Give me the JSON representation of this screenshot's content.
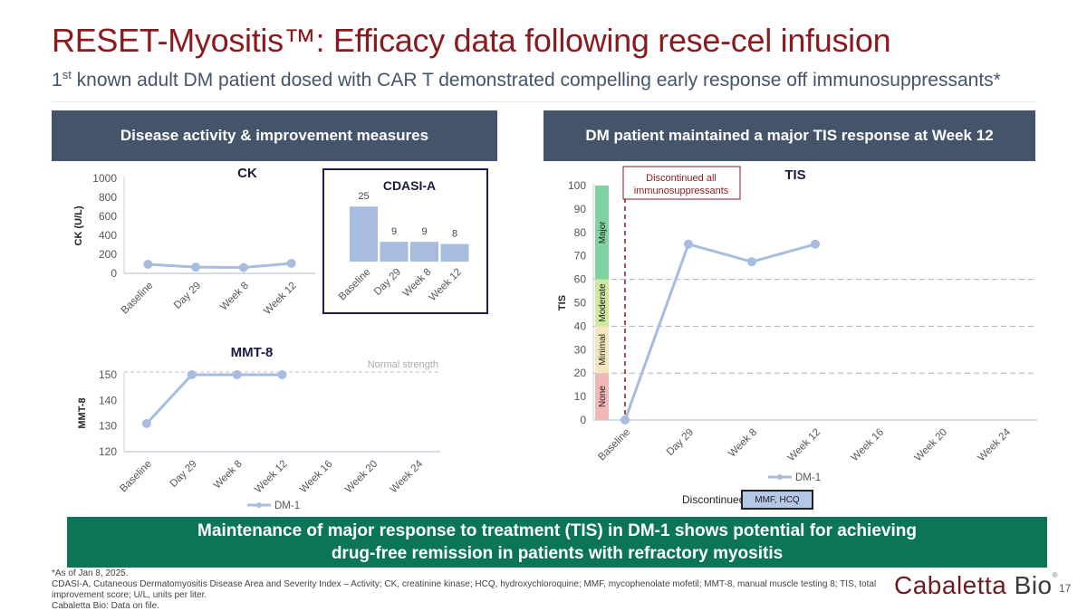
{
  "header": {
    "title": "RESET-Myositis™: Efficacy data following rese-cel infusion",
    "subtitle_sup": "st",
    "subtitle_lead": "1",
    "subtitle_rest": " known adult DM patient dosed with CAR T demonstrated compelling early response off immunosuppressants*"
  },
  "panels": {
    "left_header": "Disease activity & improvement measures",
    "right_header": "DM patient maintained a major TIS response at Week 12"
  },
  "colors": {
    "series": "#a7bcdf",
    "title_red": "#8b1a1f",
    "header_bg": "#44546a",
    "banner_bg": "#0c7558",
    "band_major": "#7fd3a0",
    "band_moderate": "#cfe8a0",
    "band_minimal": "#f3e5c0",
    "band_none": "#efb7b5",
    "discontinued_line": "#8b1a1f"
  },
  "chart_data": [
    {
      "id": "ck",
      "type": "line",
      "title": "CK",
      "ylabel": "CK (U/L)",
      "xlabel": "",
      "categories": [
        "Baseline",
        "Day 29",
        "Week 8",
        "Week 12"
      ],
      "series": [
        {
          "name": "DM-1",
          "values": [
            95,
            65,
            62,
            105
          ]
        }
      ],
      "ylim": [
        0,
        1000
      ],
      "yticks": [
        0,
        200,
        400,
        600,
        800,
        1000
      ],
      "grid": false
    },
    {
      "id": "cdasi",
      "type": "bar",
      "title": "CDASI-A",
      "categories": [
        "Baseline",
        "Day 29",
        "Week 8",
        "Week 12"
      ],
      "values": [
        25,
        9,
        9,
        8
      ],
      "data_labels": [
        "25",
        "9",
        "9",
        "8"
      ],
      "ylim": [
        0,
        30
      ],
      "grid": false
    },
    {
      "id": "mmt8",
      "type": "line",
      "title": "MMT-8",
      "ylabel": "MMT-8",
      "xlabel": "",
      "categories": [
        "Baseline",
        "Day 29",
        "Week 8",
        "Week 12",
        "Week 16",
        "Week 20",
        "Week 24"
      ],
      "series": [
        {
          "name": "DM-1",
          "values": [
            131,
            150,
            150,
            150,
            null,
            null,
            null
          ]
        }
      ],
      "ylim": [
        120,
        150
      ],
      "yticks": [
        120,
        130,
        140,
        150
      ],
      "reference_line": {
        "value": 150,
        "label": "Normal strength"
      },
      "legend": "bottom",
      "grid": false
    },
    {
      "id": "tis",
      "type": "line",
      "title": "TIS",
      "ylabel": "TIS",
      "xlabel": "",
      "categories": [
        "Baseline",
        "Day 29",
        "Week 8",
        "Week 12",
        "Week 16",
        "Week 20",
        "Week 24"
      ],
      "series": [
        {
          "name": "DM-1",
          "values": [
            0,
            75,
            67.5,
            75,
            null,
            null,
            null
          ]
        }
      ],
      "ylim": [
        0,
        100
      ],
      "yticks": [
        0,
        10,
        20,
        30,
        40,
        50,
        60,
        70,
        80,
        90,
        100
      ],
      "thresholds": [
        20,
        40,
        60
      ],
      "bands": [
        {
          "label": "None",
          "from": 0,
          "to": 20
        },
        {
          "label": "Minimal",
          "from": 20,
          "to": 40
        },
        {
          "label": "Moderate",
          "from": 40,
          "to": 60
        },
        {
          "label": "Major",
          "from": 60,
          "to": 100
        }
      ],
      "annotation": {
        "text_line1": "Discontinued all",
        "text_line2": "immunosuppressants",
        "at_category": "Baseline"
      },
      "legend": "bottom",
      "grid": false
    }
  ],
  "discontinued": {
    "label": "Discontinued:",
    "value": "MMF, HCQ"
  },
  "banner": {
    "line1": "Maintenance of major response to treatment (TIS) in DM-1 shows potential for achieving",
    "line2": "drug-free remission in patients with refractory myositis"
  },
  "footnotes": {
    "line1": "*As of Jan 8, 2025.",
    "line2": "CDASI-A, Cutaneous Dermatomyositis Disease Area and Severity Index – Activity; CK, creatinine kinase; HCQ, hydroxychloroquine; MMF, mycophenolate mofetil; MMT-8, manual muscle testing 8; TIS, total improvement score; U/L, units per liter.",
    "line3": "Cabaletta Bio: Data on file."
  },
  "logo": {
    "brand": "Cabaletta",
    "suffix": "Bio",
    "mark": "®"
  },
  "page_number": "17"
}
